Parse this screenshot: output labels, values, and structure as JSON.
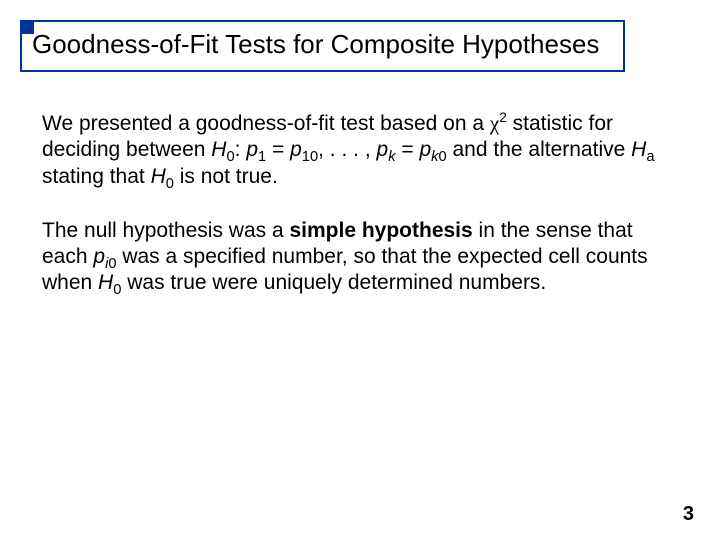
{
  "title": "Goodness-of-Fit Tests for Composite Hypotheses",
  "para1": {
    "t1": "We presented a goodness-of-fit test based on a ",
    "chi": "χ",
    "sup2": "2",
    "t2": " statistic for deciding between ",
    "H": "H",
    "sub0a": "0",
    "t3": ": ",
    "p": "p",
    "sub1": "1",
    "eq": " = ",
    "sub10": "10",
    "t4": ", . . . , ",
    "subk": "k",
    "subk0": "k",
    "sub0lit": "0",
    "t5": " and the alternative ",
    "suba": "a",
    "t6": " stating that ",
    "t7": " is not true."
  },
  "para2": {
    "t1": "The null hypothesis was a ",
    "bold": "simple hypothesis",
    "t2": " in the sense that each ",
    "p": "p",
    "subi0_i": "i",
    "subi0_0": "0",
    "t3": " was a specified number, so that the expected cell counts when ",
    "H": "H",
    "sub0": "0",
    "t4": " was true were uniquely determined numbers."
  },
  "pageNumber": "3",
  "colors": {
    "border": "#0033a0",
    "text": "#000000",
    "background": "#ffffff"
  }
}
